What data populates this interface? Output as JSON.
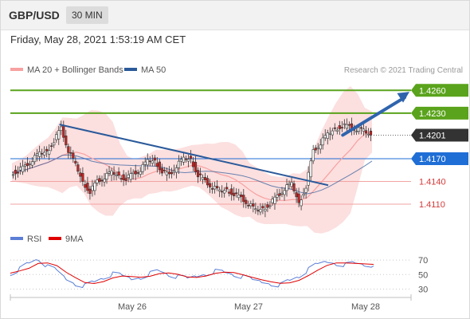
{
  "header": {
    "symbol": "GBP/USD",
    "timeframe": "30 MIN"
  },
  "datetime": "Friday, May 28, 2021 1:53:19 AM CET",
  "credit": "Research © 2021 Trading Central",
  "colors": {
    "resistance": "#5aa31c",
    "support": "#f2a3a3",
    "ma20": "#f7a1a1",
    "bands": "#fbd9d9",
    "ma50": "#2a5a9a",
    "rsi": "#5b7ed6",
    "rsi_ma": "#e00000",
    "candle_up": "#ffffff",
    "candle_down": "#cc2222",
    "pivot": "#1f6ed6",
    "arrow": "#2f64ad"
  },
  "chart_data": [
    {
      "type": "candlestick",
      "symbol": "GBP/USD",
      "interval": "30 MIN",
      "ylim": [
        1.4088,
        1.4275
      ],
      "legend": [
        {
          "label": "MA 20 + Bollinger Bands",
          "color": "#f7a1a1"
        },
        {
          "label": "MA 50",
          "color": "#2a5a9a"
        }
      ],
      "legend_position": "top-left",
      "x_ticks": [
        "May 26",
        "May 27",
        "May 28"
      ],
      "last_price": {
        "value": "1.4201",
        "y": 1.4201
      },
      "levels": [
        {
          "label": "1.4260",
          "value": 1.426,
          "kind": "resistance"
        },
        {
          "label": "1.4230",
          "value": 1.423,
          "kind": "resistance"
        },
        {
          "label": "1.4170",
          "value": 1.417,
          "kind": "pivot"
        },
        {
          "label": "1.4140",
          "value": 1.414,
          "kind": "support"
        },
        {
          "label": "1.4110",
          "value": 1.411,
          "kind": "support"
        }
      ],
      "close_series": [
        1.4152,
        1.4155,
        1.416,
        1.4168,
        1.4175,
        1.418,
        1.4195,
        1.421,
        1.418,
        1.416,
        1.414,
        1.4128,
        1.414,
        1.4145,
        1.415,
        1.4148,
        1.4145,
        1.415,
        1.4155,
        1.4165,
        1.4168,
        1.4155,
        1.4148,
        1.416,
        1.4168,
        1.417,
        1.415,
        1.414,
        1.4132,
        1.4125,
        1.413,
        1.4125,
        1.4118,
        1.411,
        1.41,
        1.4105,
        1.4112,
        1.412,
        1.413,
        1.4135,
        1.4112,
        1.4135,
        1.418,
        1.419,
        1.42,
        1.421,
        1.4215,
        1.4212,
        1.4208,
        1.4205,
        1.4201
      ],
      "trendlines": [
        {
          "from": [
            0.135,
            1.4215
          ],
          "to": [
            0.875,
            1.4135
          ]
        }
      ],
      "forecast_arrow": {
        "from": [
          0.915,
          1.4201
        ],
        "to": [
          1.0,
          1.4258
        ]
      }
    },
    {
      "type": "line",
      "indicator": "RSI",
      "ylim": [
        25,
        80
      ],
      "y_ticks": [
        70,
        50,
        30
      ],
      "legend": [
        {
          "label": "RSI",
          "color": "#5b7ed6"
        },
        {
          "label": "9MA",
          "color": "#e00000"
        }
      ],
      "legend_position": "top-left",
      "rsi": [
        52,
        58,
        66,
        72,
        60,
        55,
        44,
        38,
        35,
        40,
        46,
        50,
        48,
        44,
        47,
        52,
        55,
        50,
        46,
        44,
        48,
        52,
        55,
        53,
        50,
        46,
        42,
        40,
        38,
        36,
        42,
        48,
        56,
        64,
        68,
        66,
        64,
        66,
        64,
        62
      ]
    }
  ]
}
